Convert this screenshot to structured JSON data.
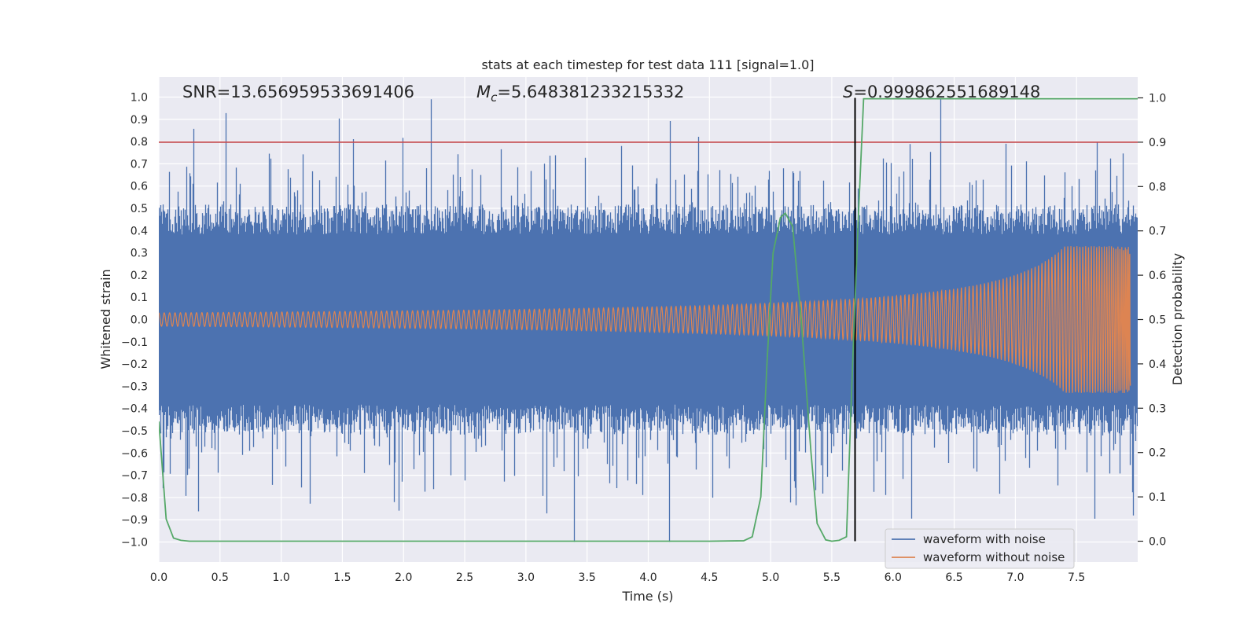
{
  "chart_data": {
    "type": "line",
    "title": "stats at each timestep for test data 111 [signal=1.0]",
    "xlabel": "Time (s)",
    "ylabel_left": "Whitened strain",
    "ylabel_right": "Detection probability",
    "xlim": [
      0.0,
      8.0
    ],
    "ylim_left": [
      -1.09,
      1.09
    ],
    "ylim_right": [
      -0.047,
      1.047
    ],
    "x_ticks": [
      "0.0",
      "0.5",
      "1.0",
      "1.5",
      "2.0",
      "2.5",
      "3.0",
      "3.5",
      "4.0",
      "4.5",
      "5.0",
      "5.5",
      "6.0",
      "6.5",
      "7.0",
      "7.5"
    ],
    "y_left_ticks": [
      "1.0",
      "0.9",
      "0.8",
      "0.7",
      "0.6",
      "0.5",
      "0.4",
      "0.3",
      "0.2",
      "0.1",
      "0.0",
      "−0.1",
      "−0.2",
      "−0.3",
      "−0.4",
      "−0.5",
      "−0.6",
      "−0.7",
      "−0.8",
      "−0.9",
      "−1.0"
    ],
    "y_right_ticks": [
      "1.0",
      "0.9",
      "0.8",
      "0.7",
      "0.6",
      "0.5",
      "0.4",
      "0.3",
      "0.2",
      "0.1",
      "0.0"
    ],
    "grid": true,
    "legend_position": "lower-right",
    "annotations": {
      "snr": "SNR=13.656959533691406",
      "mc_symbol": "M",
      "mc_subscript": "c",
      "mc_value": "=5.648381233215332",
      "s_symbol": "S",
      "s_value": "=0.999862551689148"
    },
    "threshold_line": {
      "axis": "right",
      "y": 0.9,
      "color": "#c44e52"
    },
    "event_marker": {
      "x": 5.69,
      "y_range": [
        0.0,
        1.0
      ],
      "color": "#000000"
    },
    "series": [
      {
        "name": "waveform with noise",
        "color": "#4c72b0",
        "axis": "left",
        "description_values": {
          "t_start": 0.0,
          "t_end": 8.0,
          "typical_amplitude": 0.45,
          "peak_max": 0.99,
          "peak_min": -1.0
        }
      },
      {
        "name": "waveform without noise",
        "color": "#dd8452",
        "axis": "left",
        "description_values": {
          "t_start": 0.0,
          "t_end": 7.94,
          "amplitude_start": 0.03,
          "amplitude_end": 0.33
        }
      },
      {
        "name": "detection probability",
        "color": "#55a868",
        "axis": "right",
        "x": [
          0.0,
          0.06,
          0.12,
          0.18,
          0.25,
          0.5,
          1.0,
          2.0,
          3.0,
          4.0,
          4.5,
          4.78,
          4.85,
          4.92,
          4.97,
          5.02,
          5.08,
          5.12,
          5.18,
          5.25,
          5.33,
          5.38,
          5.45,
          5.5,
          5.56,
          5.62,
          5.67,
          5.72,
          5.76,
          8.0
        ],
        "values": [
          0.27,
          0.05,
          0.007,
          0.002,
          0.0,
          0.0,
          0.0,
          0.0,
          0.0,
          0.0,
          0.0,
          0.001,
          0.01,
          0.1,
          0.4,
          0.65,
          0.73,
          0.74,
          0.71,
          0.5,
          0.2,
          0.04,
          0.003,
          0.0,
          0.002,
          0.01,
          0.4,
          0.75,
          0.998,
          0.998
        ]
      }
    ]
  }
}
